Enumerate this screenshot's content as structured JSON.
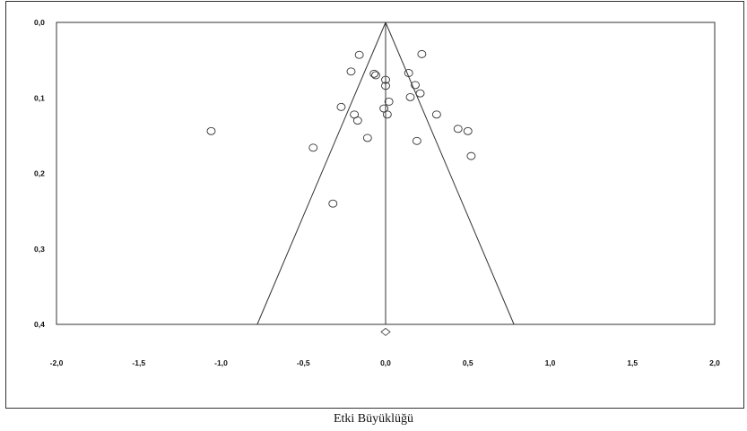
{
  "chart_data": {
    "type": "scatter",
    "title": "",
    "xlabel": "Etki Büyüklüğü",
    "ylabel": "",
    "xlim": [
      -2.0,
      2.0
    ],
    "ylim": [
      0.0,
      0.4
    ],
    "y_inverted": true,
    "grid": false,
    "x_ticks": [
      "-2,0",
      "-1,5",
      "-1,0",
      "-0,5",
      "0,0",
      "0,5",
      "1,0",
      "1,5",
      "2,0"
    ],
    "y_ticks": [
      "0,0",
      "0,1",
      "0,2",
      "0,3",
      "0,4"
    ],
    "funnel": {
      "apex": [
        0.0,
        0.0
      ],
      "base": [
        [
          -0.78,
          0.4
        ],
        [
          0.78,
          0.4
        ]
      ]
    },
    "reference_line_x": 0.0,
    "summary_estimate": {
      "x": 0.0,
      "y": 0.41
    },
    "points": [
      {
        "x": -1.06,
        "y": 0.144
      },
      {
        "x": -0.44,
        "y": 0.166
      },
      {
        "x": -0.32,
        "y": 0.24
      },
      {
        "x": -0.27,
        "y": 0.112
      },
      {
        "x": -0.21,
        "y": 0.065
      },
      {
        "x": -0.19,
        "y": 0.122
      },
      {
        "x": -0.17,
        "y": 0.13
      },
      {
        "x": -0.16,
        "y": 0.043
      },
      {
        "x": -0.11,
        "y": 0.153
      },
      {
        "x": -0.07,
        "y": 0.068
      },
      {
        "x": -0.06,
        "y": 0.07
      },
      {
        "x": -0.01,
        "y": 0.114
      },
      {
        "x": 0.0,
        "y": 0.084
      },
      {
        "x": 0.0,
        "y": 0.076
      },
      {
        "x": 0.01,
        "y": 0.122
      },
      {
        "x": 0.02,
        "y": 0.105
      },
      {
        "x": 0.14,
        "y": 0.067
      },
      {
        "x": 0.15,
        "y": 0.099
      },
      {
        "x": 0.18,
        "y": 0.083
      },
      {
        "x": 0.19,
        "y": 0.157
      },
      {
        "x": 0.21,
        "y": 0.094
      },
      {
        "x": 0.22,
        "y": 0.042
      },
      {
        "x": 0.31,
        "y": 0.122
      },
      {
        "x": 0.44,
        "y": 0.141
      },
      {
        "x": 0.5,
        "y": 0.144
      },
      {
        "x": 0.52,
        "y": 0.177
      }
    ]
  }
}
